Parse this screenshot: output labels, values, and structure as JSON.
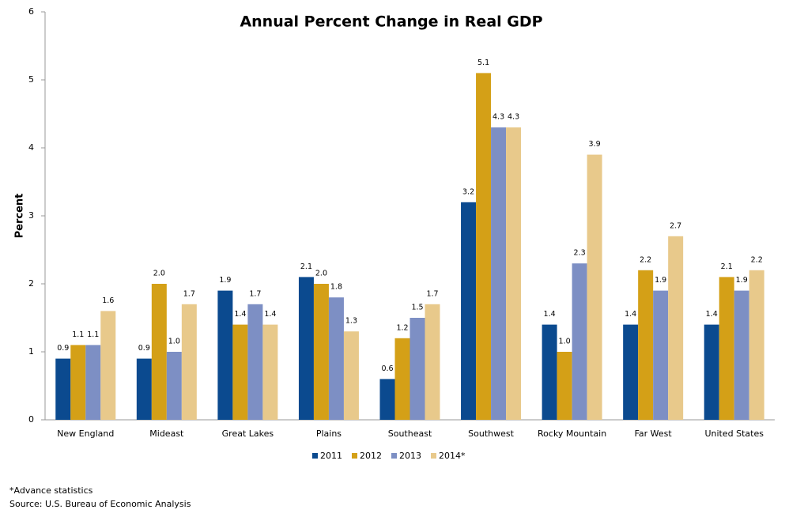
{
  "chart_data": {
    "type": "bar",
    "title": "Annual Percent Change in Real GDP",
    "y_label": "Percent",
    "categories": [
      "New England",
      "Mideast",
      "Great Lakes",
      "Plains",
      "Southeast",
      "Southwest",
      "Rocky Mountain",
      "Far West",
      "United States"
    ],
    "series": [
      {
        "name": "2011",
        "color": "#0b4a8f",
        "values": [
          0.9,
          0.9,
          1.9,
          2.1,
          0.6,
          3.2,
          1.4,
          1.4,
          1.4
        ],
        "value_labels": [
          "0.9",
          "0.9",
          "1.9",
          "2.1",
          "0.6",
          "3.2",
          "1.4",
          "1.4",
          "1.4"
        ]
      },
      {
        "name": "2012",
        "color": "#d4a017",
        "values": [
          1.1,
          2,
          1.4,
          2,
          1.2,
          5.1,
          1,
          2.2,
          2.1
        ],
        "value_labels": [
          "1.1",
          "2.0",
          "1.4",
          "2.0",
          "1.2",
          "5.1",
          "1.0",
          "2.2",
          "2.1"
        ]
      },
      {
        "name": "2013",
        "color": "#7d8fc4",
        "values": [
          1.1,
          1,
          1.7,
          1.8,
          1.5,
          4.3,
          2.3,
          1.9,
          1.9
        ],
        "value_labels": [
          "1.1",
          "1.0",
          "1.7",
          "1.8",
          "1.5",
          "4.3",
          "2.3",
          "1.9",
          "1.9"
        ]
      },
      {
        "name": "2014*",
        "color": "#e8c98b",
        "values": [
          1.6,
          1.7,
          1.4,
          1.3,
          1.7,
          4.3,
          3.9,
          2.7,
          2.2
        ],
        "value_labels": [
          "1.6",
          "1.7",
          "1.4",
          "1.3",
          "1.7",
          "4.3",
          "3.9",
          "2.7",
          "2.2"
        ]
      }
    ],
    "ylim": [
      0,
      6
    ],
    "yticks": [
      0,
      1,
      2,
      3,
      4,
      5,
      6
    ],
    "grid": false,
    "legend": "bottom",
    "notes": [
      "*Advance statistics",
      "Source: U.S. Bureau of Economic Analysis"
    ]
  }
}
